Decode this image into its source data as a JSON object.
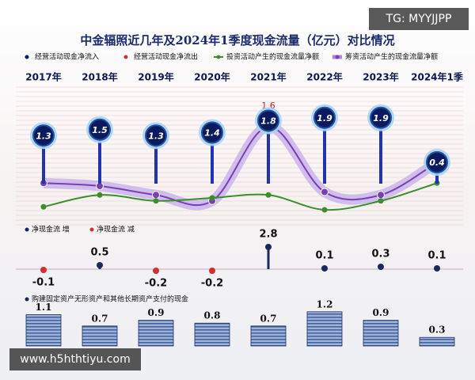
{
  "watermarks": [
    "TG: MYYJJPP",
    "www.h5hthtiyu.com"
  ],
  "chart_data": [
    {
      "type": "line",
      "title": "中金辐照近几年及2024年1季度现金流量（亿元）对比情况",
      "categories": [
        "2017年",
        "2018年",
        "2019年",
        "2020年",
        "2021年",
        "2022年",
        "2023年",
        "2024年1季"
      ],
      "ylim": [
        -2,
        3
      ],
      "series": [
        {
          "name": "经营活动现金净流入",
          "color": "#0b1a5c",
          "style": "pin",
          "values": [
            1.3,
            1.5,
            1.3,
            1.4,
            1.8,
            1.9,
            1.9,
            0.4
          ]
        },
        {
          "name": "经营活动现金净流出",
          "color": "#d32f2f",
          "style": "dot"
        },
        {
          "name": "投资活动产生的现金流量净额",
          "color": "#3a8f2a",
          "style": "line",
          "values": [
            -1.1,
            -0.7,
            -0.9,
            -0.8,
            -0.7,
            -1.2,
            -0.9,
            -0.3
          ]
        },
        {
          "name": "筹资活动产生的现金流量净额",
          "color": "#7b3fb5",
          "style": "band",
          "values": [
            -0.3,
            -0.4,
            -0.7,
            -0.9,
            1.6,
            -0.6,
            -0.7,
            0.4
          ],
          "value_labels": [
            null,
            null,
            null,
            null,
            "1.6",
            null,
            null,
            null
          ]
        }
      ]
    },
    {
      "type": "dot-bar",
      "series": [
        {
          "name": "净现金流 增",
          "color": "#1a2a5e"
        },
        {
          "name": "净现金流 减",
          "color": "#d32f2f"
        }
      ],
      "values": [
        -0.1,
        0.5,
        -0.2,
        -0.2,
        2.8,
        0.1,
        0.3,
        0.1
      ]
    },
    {
      "type": "stack",
      "title": "购建固定资产无形资产和其他长期资产支付的现金",
      "color": "#1a2a5e",
      "values": [
        1.1,
        0.7,
        0.9,
        0.8,
        0.7,
        1.2,
        0.9,
        0.3
      ]
    }
  ]
}
